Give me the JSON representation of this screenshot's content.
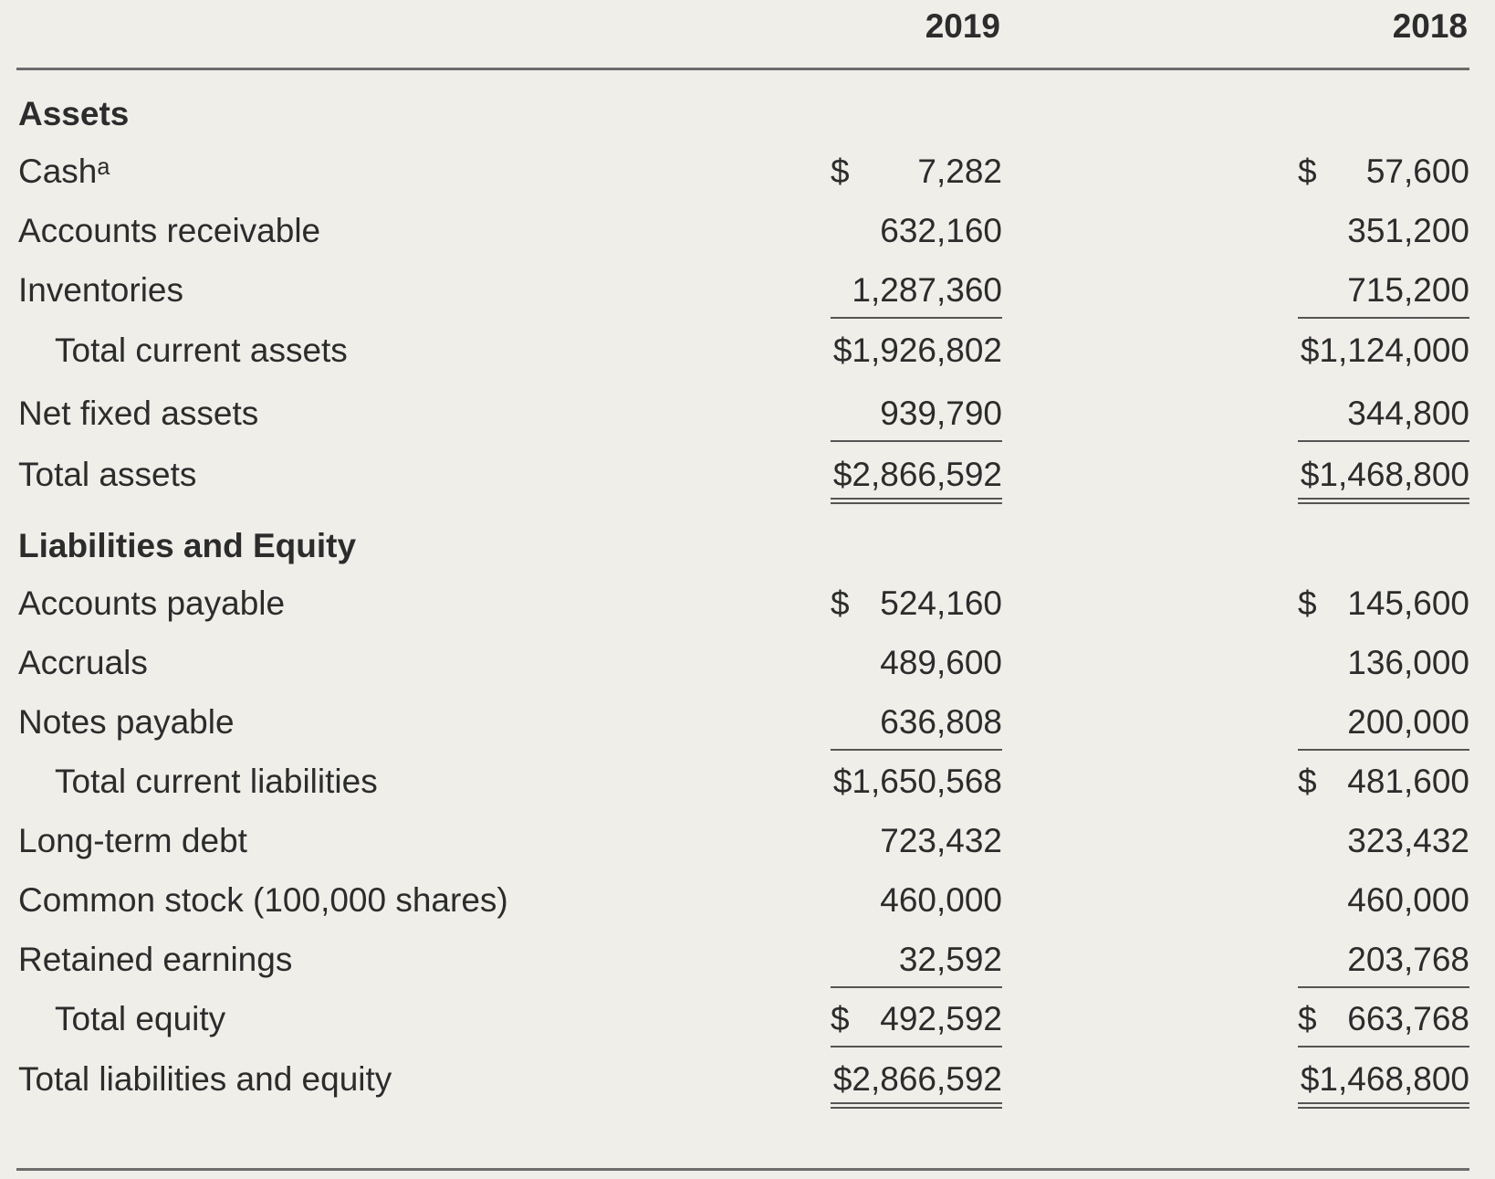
{
  "columns": {
    "year_2019": "2019",
    "year_2018": "2018"
  },
  "rows": {
    "assets_header": {
      "label": "Assets"
    },
    "cash": {
      "label": "Cashᵃ",
      "v2019": "7,282",
      "d2019": "$",
      "v2018": "57,600",
      "d2018": "$"
    },
    "accounts_receivable": {
      "label": "Accounts receivable",
      "v2019": "632,160",
      "v2018": "351,200"
    },
    "inventories": {
      "label": "Inventories",
      "v2019": "1,287,360",
      "v2018": "715,200"
    },
    "total_current_assets": {
      "label": "Total current assets",
      "v2019": "$1,926,802",
      "v2018": "$1,124,000"
    },
    "net_fixed_assets": {
      "label": "Net fixed assets",
      "v2019": "939,790",
      "v2018": "344,800"
    },
    "total_assets": {
      "label": "Total assets",
      "v2019": "$2,866,592",
      "v2018": "$1,468,800"
    },
    "liabilities_header": {
      "label": "Liabilities and Equity"
    },
    "accounts_payable": {
      "label": "Accounts payable",
      "v2019": "524,160",
      "d2019": "$",
      "v2018": "145,600",
      "d2018": "$"
    },
    "accruals": {
      "label": "Accruals",
      "v2019": "489,600",
      "v2018": "136,000"
    },
    "notes_payable": {
      "label": "Notes payable",
      "v2019": "636,808",
      "v2018": "200,000"
    },
    "total_current_liabilities": {
      "label": "Total current liabilities",
      "v2019": "$1,650,568",
      "v2018": "481,600",
      "d2018": "$"
    },
    "long_term_debt": {
      "label": "Long-term debt",
      "v2019": "723,432",
      "v2018": "323,432"
    },
    "common_stock": {
      "label": "Common stock (100,000 shares)",
      "v2019": "460,000",
      "v2018": "460,000"
    },
    "retained_earnings": {
      "label": "Retained earnings",
      "v2019": "32,592",
      "v2018": "203,768"
    },
    "total_equity": {
      "label": "Total equity",
      "v2019": "492,592",
      "d2019": "$",
      "v2018": "663,768",
      "d2018": "$"
    },
    "total_liabilities_equity": {
      "label": "Total liabilities and equity",
      "v2019": "$2,866,592",
      "v2018": "$1,468,800"
    }
  }
}
